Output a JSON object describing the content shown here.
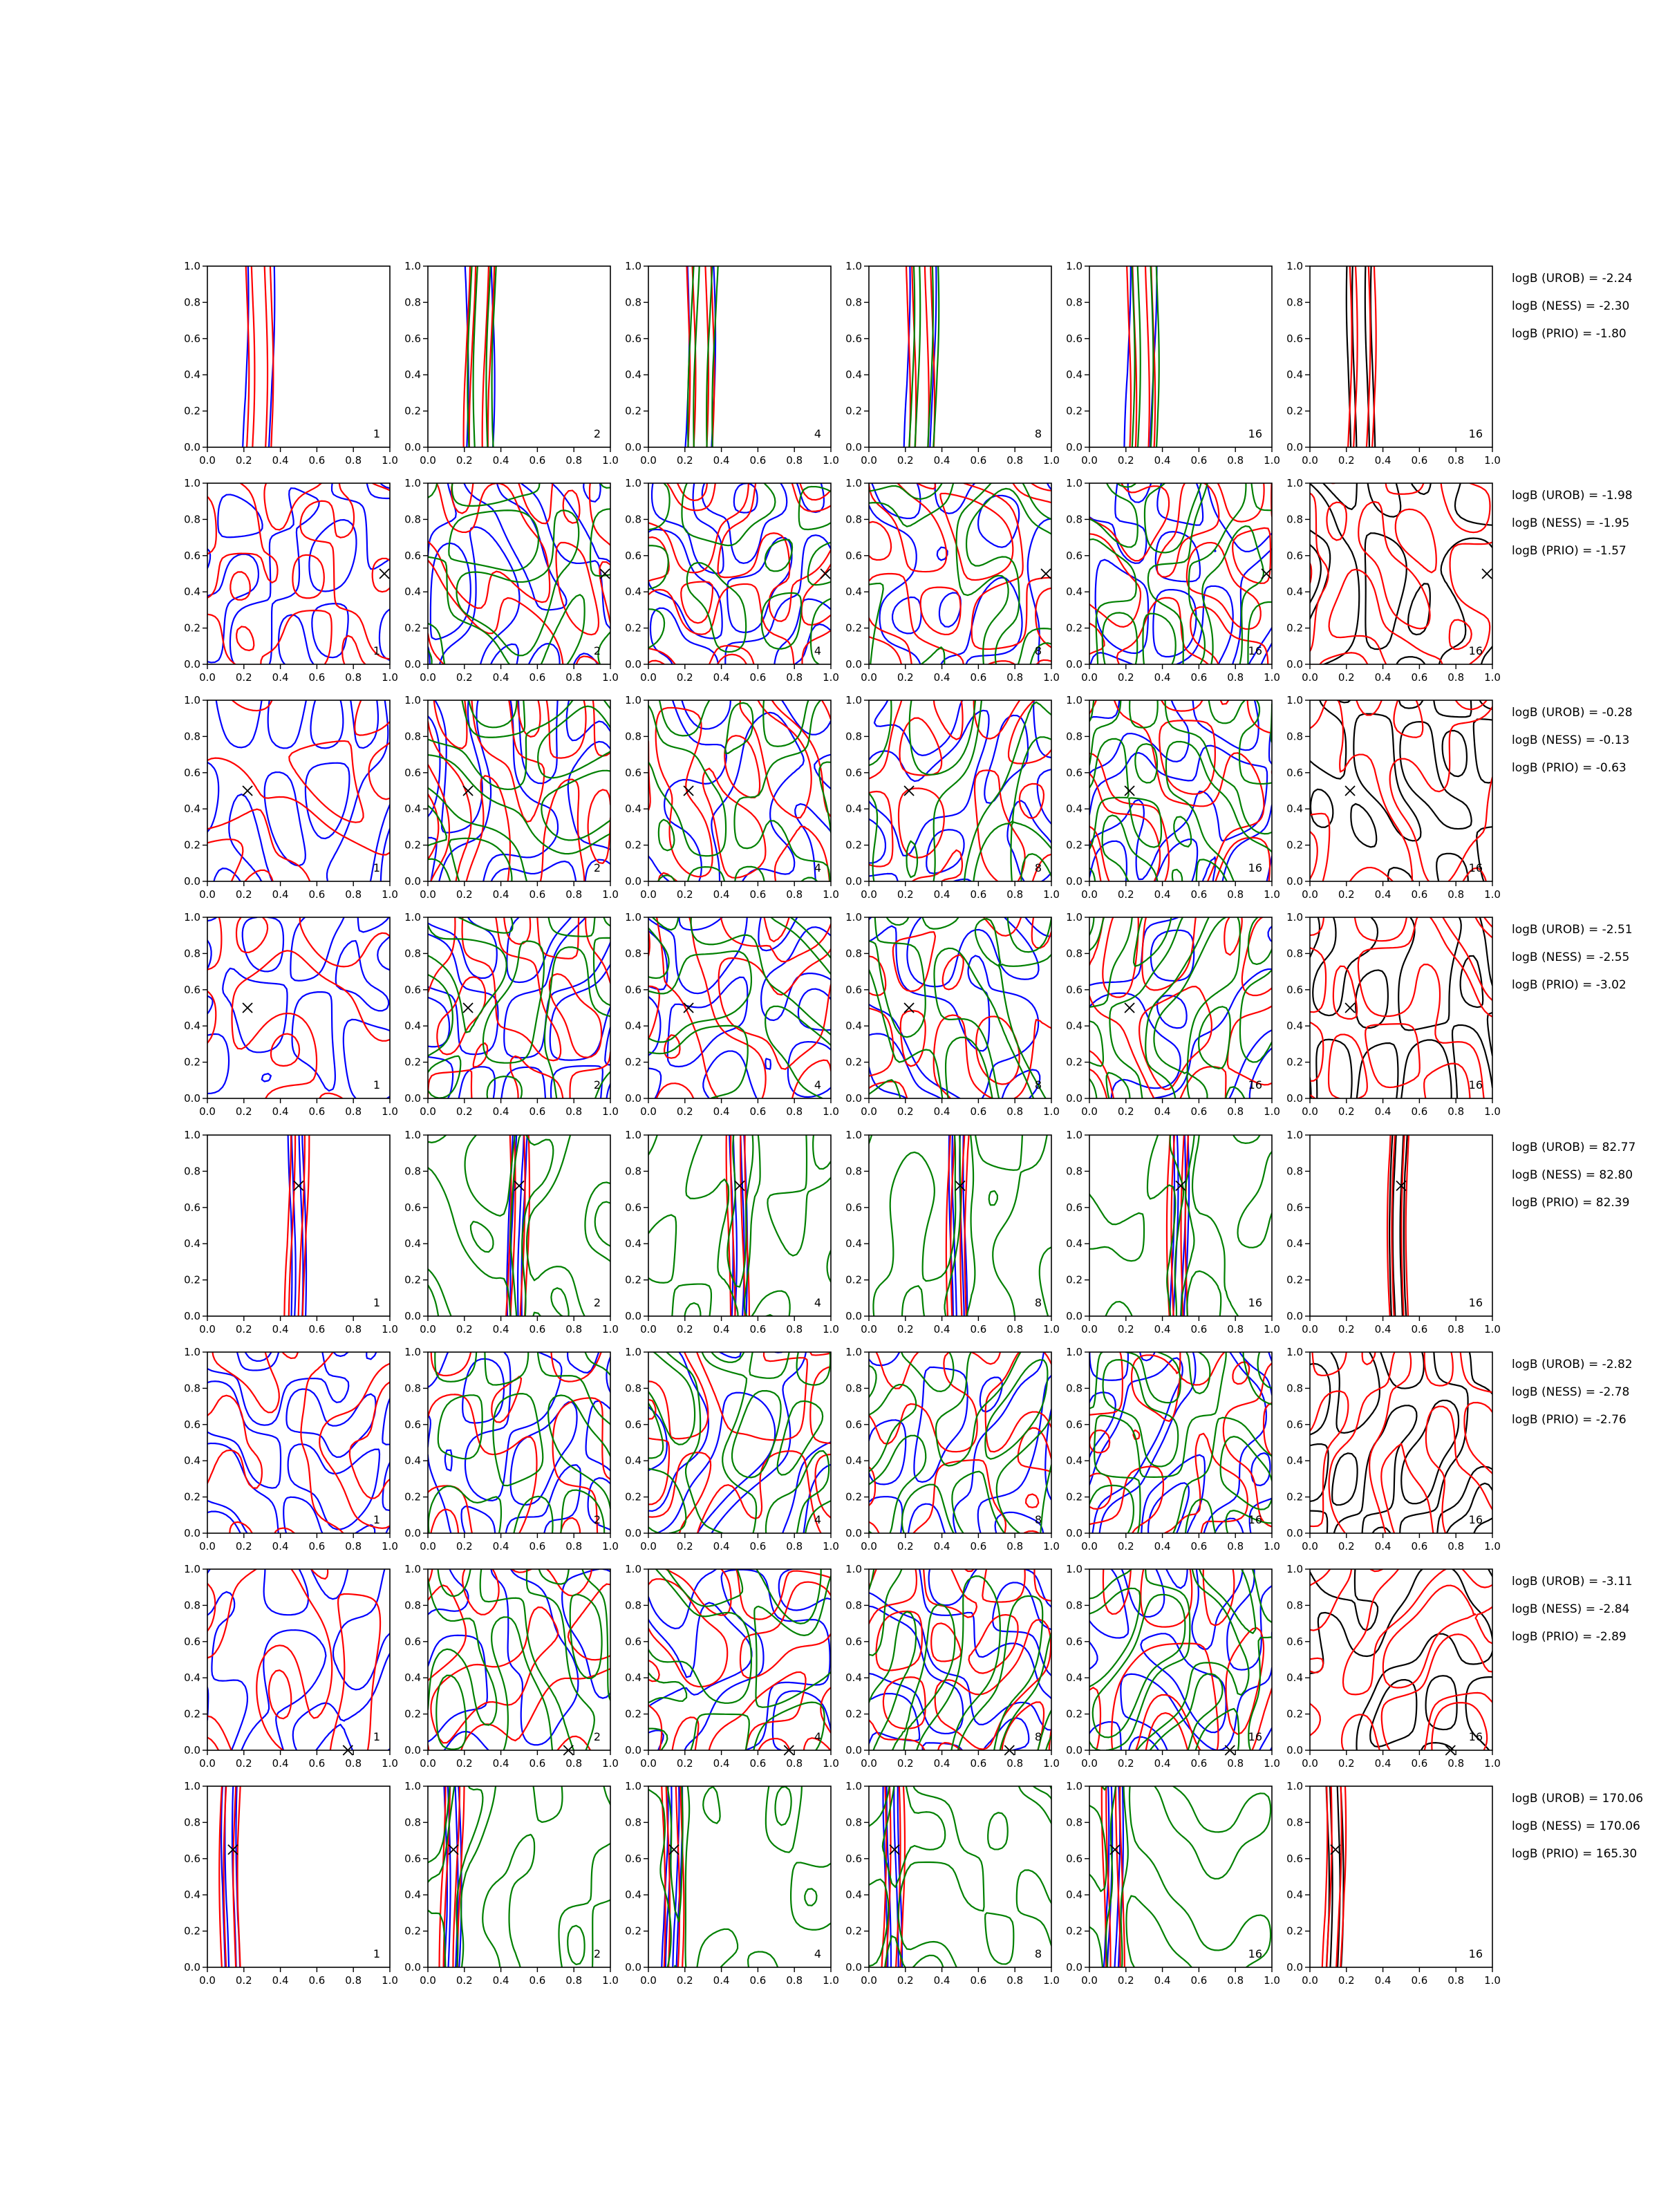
{
  "chart_data": {
    "type": "contour",
    "layout": {
      "rows": 8,
      "cols": 6
    },
    "xlim": [
      0.0,
      1.0
    ],
    "ylim": [
      0.0,
      1.0
    ],
    "xticks": [
      "0.0",
      "0.2",
      "0.4",
      "0.6",
      "0.8",
      "1.0"
    ],
    "yticks": [
      "0.0",
      "0.2",
      "0.4",
      "0.6",
      "0.8",
      "1.0"
    ],
    "column_labels": [
      "1",
      "2",
      "4",
      "8",
      "16",
      "16"
    ],
    "colors": {
      "blue": "#0000ff",
      "red": "#ff0000",
      "green": "#008000",
      "black": "#000000"
    },
    "rows": [
      {
        "marker": null,
        "bf": [
          "logB (UROB) = -2.24",
          "logB (NESS) = -2.30",
          "logB (PRIO) = -1.80"
        ]
      },
      {
        "marker": [
          0.97,
          0.5
        ],
        "bf": [
          "logB (UROB) = -1.98",
          "logB (NESS) = -1.95",
          "logB (PRIO) = -1.57"
        ]
      },
      {
        "marker": [
          0.22,
          0.5
        ],
        "bf": [
          "logB (UROB) = -0.28",
          "logB (NESS) = -0.13",
          "logB (PRIO) = -0.63"
        ]
      },
      {
        "marker": [
          0.22,
          0.5
        ],
        "bf": [
          "logB (UROB) = -2.51",
          "logB (NESS) = -2.55",
          "logB (PRIO) = -3.02"
        ]
      },
      {
        "marker": [
          0.5,
          0.72
        ],
        "bf": [
          "logB (UROB) = 82.77",
          "logB (NESS) = 82.80",
          "logB (PRIO) = 82.39"
        ]
      },
      {
        "marker": null,
        "bf": [
          "logB (UROB) = -2.82",
          "logB (NESS) = -2.78",
          "logB (PRIO) = -2.76"
        ]
      },
      {
        "marker": [
          0.77,
          0.0
        ],
        "bf": [
          "logB (UROB) = -3.11",
          "logB (NESS) = -2.84",
          "logB (PRIO) = -2.89"
        ]
      },
      {
        "marker": [
          0.14,
          0.65
        ],
        "bf": [
          "logB (UROB) = 170.06",
          "logB (NESS) = 170.06",
          "logB (PRIO) = 165.30"
        ]
      }
    ]
  }
}
